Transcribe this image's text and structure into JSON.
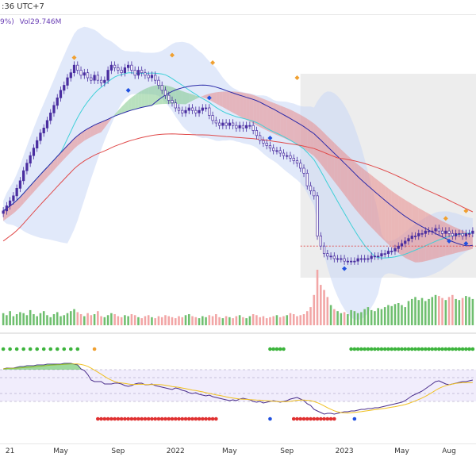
{
  "header": {
    "time_text": ":36 UTC+7"
  },
  "legend": {
    "pct_text": "9%)",
    "vol_text": "Vol29.746M"
  },
  "colors": {
    "up": "#4a2ea0",
    "down": "#ffffff",
    "down_border": "#4a2ea0",
    "kumo_bull": "#7fc98a",
    "kumo_bear": "#e88a8a",
    "bb": "#c9d7f5",
    "ma_short": "#3ed0d8",
    "ma_mid": "#2a2aa8",
    "ma_long": "#e04a4a",
    "vol_up": "#6fbf6f",
    "vol_down": "#f2a6a6",
    "osc_line": "#4a2e8c",
    "osc_signal": "#f0c020",
    "sig_green": "#3cb43c",
    "sig_red": "#e03030",
    "sig_blue": "#2050e0",
    "sig_orange": "#f0a030"
  },
  "x_axis": {
    "ticks": [
      {
        "label": "21",
        "idx": 2
      },
      {
        "label": "May",
        "idx": 17
      },
      {
        "label": "Sep",
        "idx": 34
      },
      {
        "label": "2022",
        "idx": 51
      },
      {
        "label": "May",
        "idx": 67
      },
      {
        "label": "Sep",
        "idx": 84
      },
      {
        "label": "2023",
        "idx": 101
      },
      {
        "label": "May",
        "idx": 118
      },
      {
        "label": "Aug",
        "idx": 132
      }
    ]
  },
  "chart_data": {
    "type": "candlestick",
    "close": [
      30,
      32,
      34,
      36,
      39,
      42,
      46,
      49,
      52,
      55,
      58,
      61,
      63,
      66,
      69,
      72,
      75,
      78,
      80,
      83,
      85,
      88,
      86,
      84,
      85,
      83,
      82,
      84,
      82,
      81,
      82,
      86,
      88,
      87,
      86,
      85,
      87,
      88,
      86,
      84,
      86,
      85,
      84,
      83,
      84,
      82,
      80,
      78,
      76,
      74,
      73,
      71,
      70,
      69,
      70,
      71,
      70,
      69,
      70,
      71,
      71,
      68,
      66,
      65,
      64,
      65,
      64,
      65,
      64,
      63,
      64,
      63,
      64,
      64,
      62,
      60,
      58,
      57,
      56,
      55,
      54,
      54,
      53,
      52,
      52,
      51,
      50,
      49,
      47,
      45,
      40,
      38,
      36,
      20,
      16,
      13,
      12,
      12,
      11,
      11,
      11,
      10,
      10,
      10,
      10,
      11,
      11,
      11,
      11,
      12,
      12,
      12,
      13,
      13,
      14,
      14,
      15,
      16,
      17,
      18,
      19,
      20,
      20,
      21,
      21,
      22,
      22,
      22,
      23,
      22,
      21,
      22,
      21,
      20,
      21,
      21,
      20,
      21,
      21,
      22
    ],
    "volume": [
      12,
      10,
      14,
      9,
      11,
      13,
      12,
      10,
      15,
      11,
      9,
      12,
      14,
      10,
      8,
      11,
      13,
      9,
      10,
      12,
      14,
      16,
      13,
      11,
      9,
      12,
      10,
      11,
      14,
      9,
      8,
      10,
      12,
      11,
      9,
      8,
      10,
      9,
      11,
      10,
      8,
      7,
      9,
      10,
      8,
      7,
      9,
      8,
      10,
      9,
      8,
      7,
      9,
      8,
      10,
      11,
      9,
      8,
      7,
      9,
      8,
      10,
      9,
      11,
      8,
      7,
      9,
      8,
      7,
      9,
      10,
      8,
      7,
      9,
      11,
      10,
      8,
      9,
      7,
      8,
      9,
      10,
      8,
      9,
      10,
      12,
      11,
      9,
      10,
      11,
      14,
      18,
      30,
      55,
      40,
      35,
      28,
      20,
      16,
      14,
      12,
      13,
      11,
      15,
      14,
      12,
      13,
      16,
      18,
      15,
      14,
      17,
      16,
      18,
      20,
      19,
      21,
      22,
      20,
      18,
      24,
      26,
      28,
      25,
      27,
      24,
      26,
      28,
      30,
      29,
      27,
      25,
      28,
      30,
      26,
      25,
      27,
      29,
      28,
      26
    ],
    "oscillator": [
      71,
      72,
      72,
      72,
      73,
      74,
      74,
      75,
      75,
      75,
      76,
      76,
      76,
      77,
      77,
      77,
      77,
      77,
      78,
      78,
      78,
      77,
      76,
      71,
      69,
      64,
      57,
      55,
      55,
      55,
      52,
      52,
      52,
      53,
      53,
      52,
      50,
      49,
      50,
      52,
      53,
      53,
      51,
      51,
      52,
      50,
      49,
      48,
      47,
      46,
      45,
      47,
      46,
      44,
      43,
      41,
      40,
      41,
      39,
      38,
      37,
      38,
      36,
      35,
      34,
      33,
      32,
      31,
      32,
      31,
      33,
      34,
      33,
      32,
      30,
      29,
      30,
      28,
      29,
      30,
      31,
      30,
      29,
      30,
      31,
      33,
      34,
      35,
      33,
      31,
      27,
      25,
      20,
      18,
      16,
      14,
      15,
      15,
      14,
      15,
      16,
      17,
      17,
      18,
      18,
      19,
      20,
      20,
      21,
      21,
      22,
      22,
      23,
      24,
      25,
      26,
      27,
      28,
      29,
      31,
      34,
      37,
      39,
      41,
      43,
      46,
      49,
      52,
      55,
      56,
      54,
      52,
      51,
      52,
      53,
      54,
      55,
      55,
      56,
      57
    ]
  }
}
